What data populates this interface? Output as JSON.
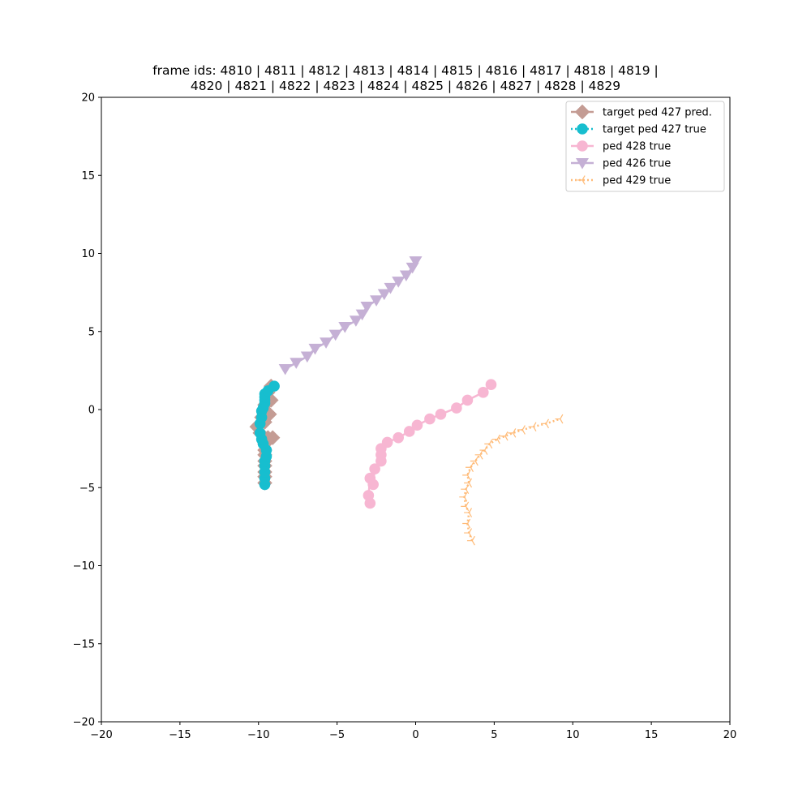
{
  "chart_data": {
    "type": "scatter",
    "title_lines": [
      "frame ids: 4810 | 4811 | 4812 | 4813 | 4814 | 4815 | 4816 | 4817 | 4818 | 4819 |",
      "4820 | 4821 | 4822 | 4823 | 4824 | 4825 | 4826 | 4827 | 4828 | 4829"
    ],
    "xlabel": "",
    "ylabel": "",
    "xlim": [
      -20,
      20
    ],
    "ylim": [
      -20,
      20
    ],
    "xticks": [
      -20,
      -15,
      -10,
      -5,
      0,
      5,
      10,
      15,
      20
    ],
    "yticks": [
      -20,
      -15,
      -10,
      -5,
      0,
      5,
      10,
      15,
      20
    ],
    "grid": false,
    "legend_position": "top-right",
    "series": [
      {
        "name": "target ped 427 pred.",
        "color": "#c49c94",
        "marker": "diamond",
        "line": "solid",
        "x": [
          -9.6,
          -9.6,
          -9.6,
          -9.6,
          -9.6,
          -9.6,
          -9.6,
          -9.6,
          -9.5,
          -9.4,
          -9.1,
          -9.9,
          -10.1,
          -9.6,
          -9.8,
          -9.3,
          -9.6,
          -9.2,
          -9.4,
          -9.2
        ],
        "y": [
          -4.7,
          -4.3,
          -4.0,
          -3.6,
          -3.3,
          -2.9,
          -2.6,
          -2.2,
          -1.9,
          -1.8,
          -1.8,
          -1.5,
          -1.1,
          -0.8,
          -0.5,
          -0.3,
          0.3,
          0.6,
          1.1,
          1.5
        ]
      },
      {
        "name": "target ped 427 true",
        "color": "#17becf",
        "marker": "circle",
        "line": "dotted",
        "x": [
          -9.6,
          -9.6,
          -9.6,
          -9.6,
          -9.6,
          -9.5,
          -9.5,
          -9.7,
          -9.8,
          -9.9,
          -9.9,
          -9.8,
          -9.8,
          -9.7,
          -9.6,
          -9.6,
          -9.6,
          -9.6,
          -9.4,
          -9.0
        ],
        "y": [
          -4.8,
          -4.4,
          -4.0,
          -3.6,
          -3.3,
          -3.0,
          -2.6,
          -2.2,
          -1.9,
          -1.5,
          -0.9,
          -0.5,
          -0.1,
          0.1,
          0.4,
          0.6,
          0.8,
          1.0,
          1.2,
          1.5
        ]
      },
      {
        "name": "ped 428 true",
        "color": "#f7b6d2",
        "marker": "circle",
        "line": "solid",
        "x": [
          -2.9,
          -3.0,
          -2.9,
          -2.7,
          -2.6,
          -2.2,
          -2.2,
          -2.2,
          -1.8,
          -1.1,
          -0.4,
          0.1,
          0.9,
          1.6,
          2.6,
          3.3,
          4.3,
          4.8
        ],
        "y": [
          -6.0,
          -5.5,
          -4.4,
          -4.8,
          -3.8,
          -3.3,
          -2.9,
          -2.5,
          -2.1,
          -1.8,
          -1.4,
          -1.0,
          -0.6,
          -0.3,
          0.1,
          0.6,
          1.1,
          1.6
        ]
      },
      {
        "name": "ped 426 true",
        "color": "#c5b0d5",
        "marker": "triangle-down",
        "line": "solid",
        "x": [
          -8.3,
          -7.6,
          -6.9,
          -6.4,
          -5.7,
          -5.1,
          -4.5,
          -3.8,
          -3.4,
          -3.1,
          -2.5,
          -2.0,
          -1.6,
          -1.1,
          -0.6,
          -0.2,
          -0.0
        ],
        "y": [
          2.6,
          3.0,
          3.4,
          3.9,
          4.3,
          4.8,
          5.3,
          5.7,
          6.1,
          6.6,
          7.0,
          7.4,
          7.8,
          8.2,
          8.6,
          9.1,
          9.5
        ]
      },
      {
        "name": "ped 429 true",
        "color": "#ffbb78",
        "marker": "tri-left",
        "line": "dotted",
        "x": [
          3.6,
          3.4,
          3.3,
          3.4,
          3.2,
          3.1,
          3.2,
          3.4,
          3.3,
          3.5,
          3.8,
          4.1,
          4.4,
          4.7,
          5.2,
          5.7,
          6.2,
          6.8,
          7.5,
          8.3,
          9.2
        ],
        "y": [
          -8.4,
          -7.9,
          -7.3,
          -6.6,
          -6.2,
          -5.6,
          -5.1,
          -4.7,
          -4.2,
          -3.7,
          -3.3,
          -2.9,
          -2.6,
          -2.2,
          -1.9,
          -1.7,
          -1.5,
          -1.3,
          -1.1,
          -0.9,
          -0.6
        ]
      }
    ]
  }
}
